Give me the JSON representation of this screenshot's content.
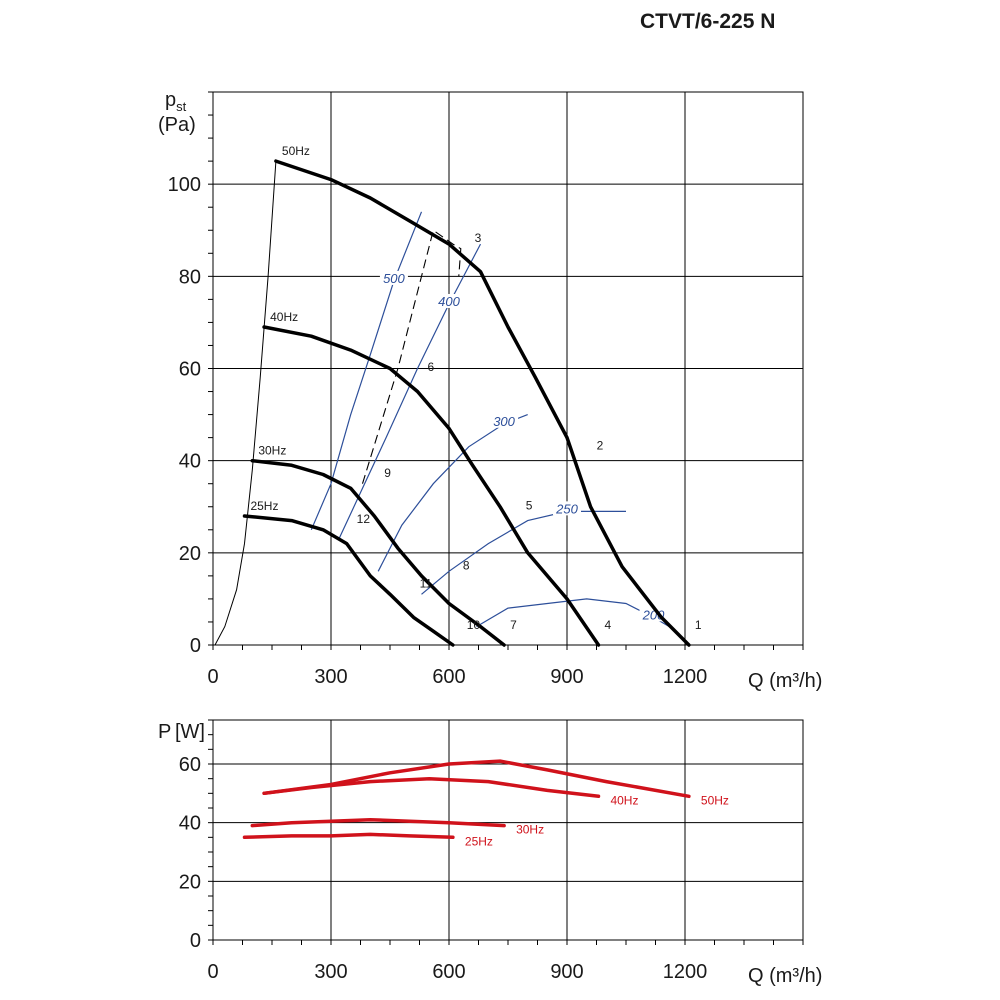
{
  "title": "CTVT/6-225 N",
  "chart_data": [
    {
      "type": "line",
      "xlabel": "Q (m³/h)",
      "ylabel_main": "p",
      "ylabel_sub": "st",
      "ylabel_unit": "(Pa)",
      "xlim": [
        0,
        1500
      ],
      "ylim": [
        0,
        120
      ],
      "xticks": [
        0,
        300,
        600,
        900,
        1200
      ],
      "yticks": [
        0,
        20,
        40,
        60,
        80,
        100
      ],
      "grid": true,
      "series": [
        {
          "name": "50Hz",
          "points": [
            [
              160,
              105
            ],
            [
              300,
              101
            ],
            [
              400,
              97
            ],
            [
              500,
              92
            ],
            [
              600,
              87
            ],
            [
              680,
              81
            ],
            [
              750,
              69
            ],
            [
              820,
              58
            ],
            [
              900,
              45
            ],
            [
              960,
              30
            ],
            [
              1040,
              17
            ],
            [
              1140,
              6
            ],
            [
              1210,
              0
            ]
          ]
        },
        {
          "name": "40Hz",
          "points": [
            [
              130,
              69
            ],
            [
              250,
              67
            ],
            [
              350,
              64
            ],
            [
              450,
              60
            ],
            [
              520,
              55
            ],
            [
              600,
              47
            ],
            [
              660,
              39
            ],
            [
              730,
              30
            ],
            [
              800,
              20
            ],
            [
              900,
              10
            ],
            [
              980,
              0
            ]
          ]
        },
        {
          "name": "30Hz",
          "points": [
            [
              100,
              40
            ],
            [
              200,
              39
            ],
            [
              280,
              37
            ],
            [
              350,
              34
            ],
            [
              410,
              28
            ],
            [
              470,
              21
            ],
            [
              530,
              15
            ],
            [
              600,
              9
            ],
            [
              680,
              4
            ],
            [
              740,
              0
            ]
          ]
        },
        {
          "name": "25Hz",
          "points": [
            [
              80,
              28
            ],
            [
              200,
              27
            ],
            [
              280,
              25
            ],
            [
              340,
              22
            ],
            [
              400,
              15
            ],
            [
              450,
              11
            ],
            [
              510,
              6
            ],
            [
              560,
              3
            ],
            [
              610,
              0
            ]
          ]
        }
      ],
      "start_curve": [
        [
          5,
          0
        ],
        [
          30,
          4
        ],
        [
          60,
          12
        ],
        [
          80,
          22
        ],
        [
          100,
          38
        ],
        [
          120,
          58
        ],
        [
          140,
          80
        ],
        [
          160,
          105
        ]
      ],
      "efficiency_lines": [
        {
          "label": "500",
          "points": [
            [
              250,
              25
            ],
            [
              300,
              35
            ],
            [
              350,
              50
            ],
            [
              400,
              63
            ],
            [
              460,
              79
            ],
            [
              530,
              94
            ]
          ]
        },
        {
          "label": "400",
          "points": [
            [
              320,
              23
            ],
            [
              380,
              34
            ],
            [
              440,
              45
            ],
            [
              520,
              60
            ],
            [
              600,
              74
            ],
            [
              680,
              87
            ]
          ]
        },
        {
          "label": "300",
          "points": [
            [
              420,
              16
            ],
            [
              480,
              26
            ],
            [
              560,
              35
            ],
            [
              650,
              43
            ],
            [
              740,
              48
            ],
            [
              800,
              50
            ]
          ]
        },
        {
          "label": "250",
          "points": [
            [
              530,
              11
            ],
            [
              600,
              16
            ],
            [
              700,
              22
            ],
            [
              800,
              27
            ],
            [
              900,
              29
            ],
            [
              1050,
              29
            ]
          ]
        },
        {
          "label": "200",
          "points": [
            [
              670,
              4
            ],
            [
              750,
              8
            ],
            [
              850,
              9
            ],
            [
              950,
              10
            ],
            [
              1050,
              9
            ],
            [
              1120,
              6
            ],
            [
              1160,
              4
            ]
          ]
        }
      ],
      "dashed_line": [
        [
          380,
          35
        ],
        [
          470,
          60
        ],
        [
          560,
          90
        ],
        [
          610,
          87
        ],
        [
          630,
          86
        ],
        [
          625,
          80
        ]
      ],
      "operating_points": [
        {
          "label": "1",
          "x": 1210,
          "y": 3
        },
        {
          "label": "2",
          "x": 960,
          "y": 42
        },
        {
          "label": "3",
          "x": 650,
          "y": 87
        },
        {
          "label": "4",
          "x": 980,
          "y": 3
        },
        {
          "label": "5",
          "x": 780,
          "y": 29
        },
        {
          "label": "6",
          "x": 530,
          "y": 59
        },
        {
          "label": "7",
          "x": 740,
          "y": 3
        },
        {
          "label": "8",
          "x": 620,
          "y": 16
        },
        {
          "label": "9",
          "x": 420,
          "y": 36
        },
        {
          "label": "10",
          "x": 630,
          "y": 3
        },
        {
          "label": "11",
          "x": 510,
          "y": 12
        },
        {
          "label": "12",
          "x": 350,
          "y": 26
        }
      ]
    },
    {
      "type": "line",
      "xlabel": "Q (m³/h)",
      "ylabel_main": "P",
      "ylabel_unit": "[W]",
      "xlim": [
        0,
        1500
      ],
      "ylim": [
        0,
        75
      ],
      "xticks": [
        0,
        300,
        600,
        900,
        1200
      ],
      "yticks": [
        0,
        20,
        40,
        60
      ],
      "grid": true,
      "series": [
        {
          "name": "50Hz",
          "points": [
            [
              130,
              50
            ],
            [
              300,
              53
            ],
            [
              450,
              57
            ],
            [
              600,
              60
            ],
            [
              730,
              61
            ],
            [
              850,
              58
            ],
            [
              1000,
              54
            ],
            [
              1210,
              49
            ]
          ]
        },
        {
          "name": "40Hz",
          "points": [
            [
              130,
              50
            ],
            [
              250,
              52
            ],
            [
              400,
              54
            ],
            [
              550,
              55
            ],
            [
              700,
              54
            ],
            [
              850,
              51
            ],
            [
              980,
              49
            ]
          ]
        },
        {
          "name": "30Hz",
          "points": [
            [
              100,
              39
            ],
            [
              200,
              40
            ],
            [
              300,
              40.5
            ],
            [
              400,
              41
            ],
            [
              500,
              40.5
            ],
            [
              600,
              40
            ],
            [
              740,
              39
            ]
          ]
        },
        {
          "name": "25Hz",
          "points": [
            [
              80,
              35
            ],
            [
              200,
              35.5
            ],
            [
              300,
              35.5
            ],
            [
              400,
              36
            ],
            [
              500,
              35.5
            ],
            [
              610,
              35
            ]
          ]
        }
      ]
    }
  ]
}
